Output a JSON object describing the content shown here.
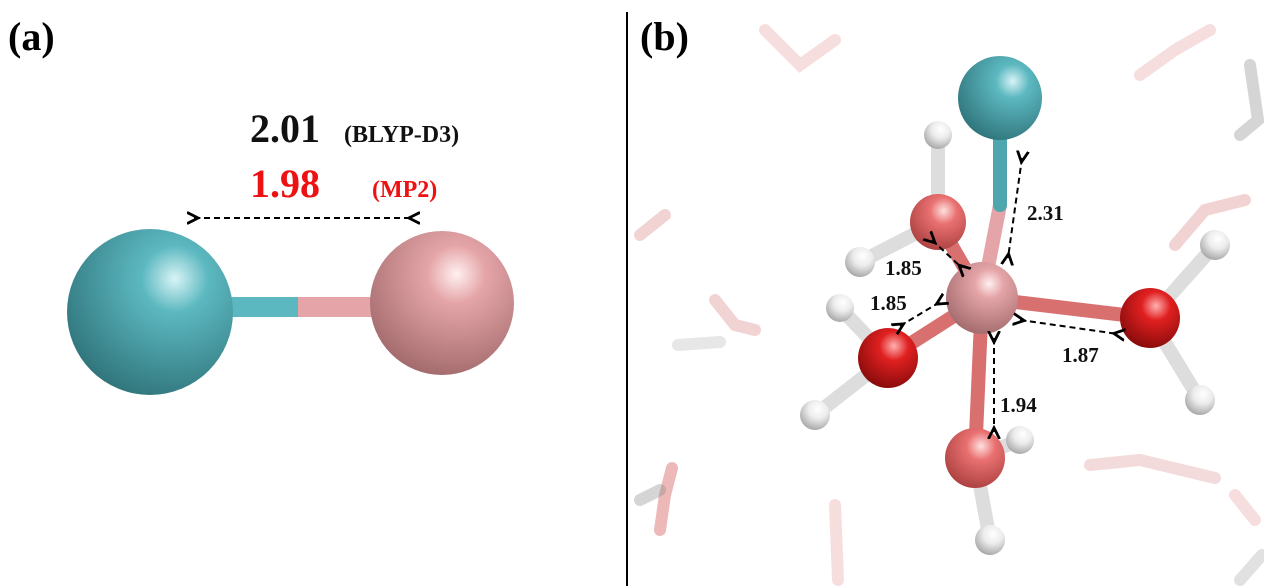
{
  "panels": [
    {
      "label": "(a)",
      "annotations": [
        {
          "value": "2.01",
          "method": "(BLYP-D3)"
        },
        {
          "value": "1.98",
          "method": "(MP2)"
        }
      ]
    },
    {
      "label": "(b)",
      "distances": [
        "2.31",
        "1.85",
        "1.85",
        "1.87",
        "1.94"
      ]
    }
  ]
}
